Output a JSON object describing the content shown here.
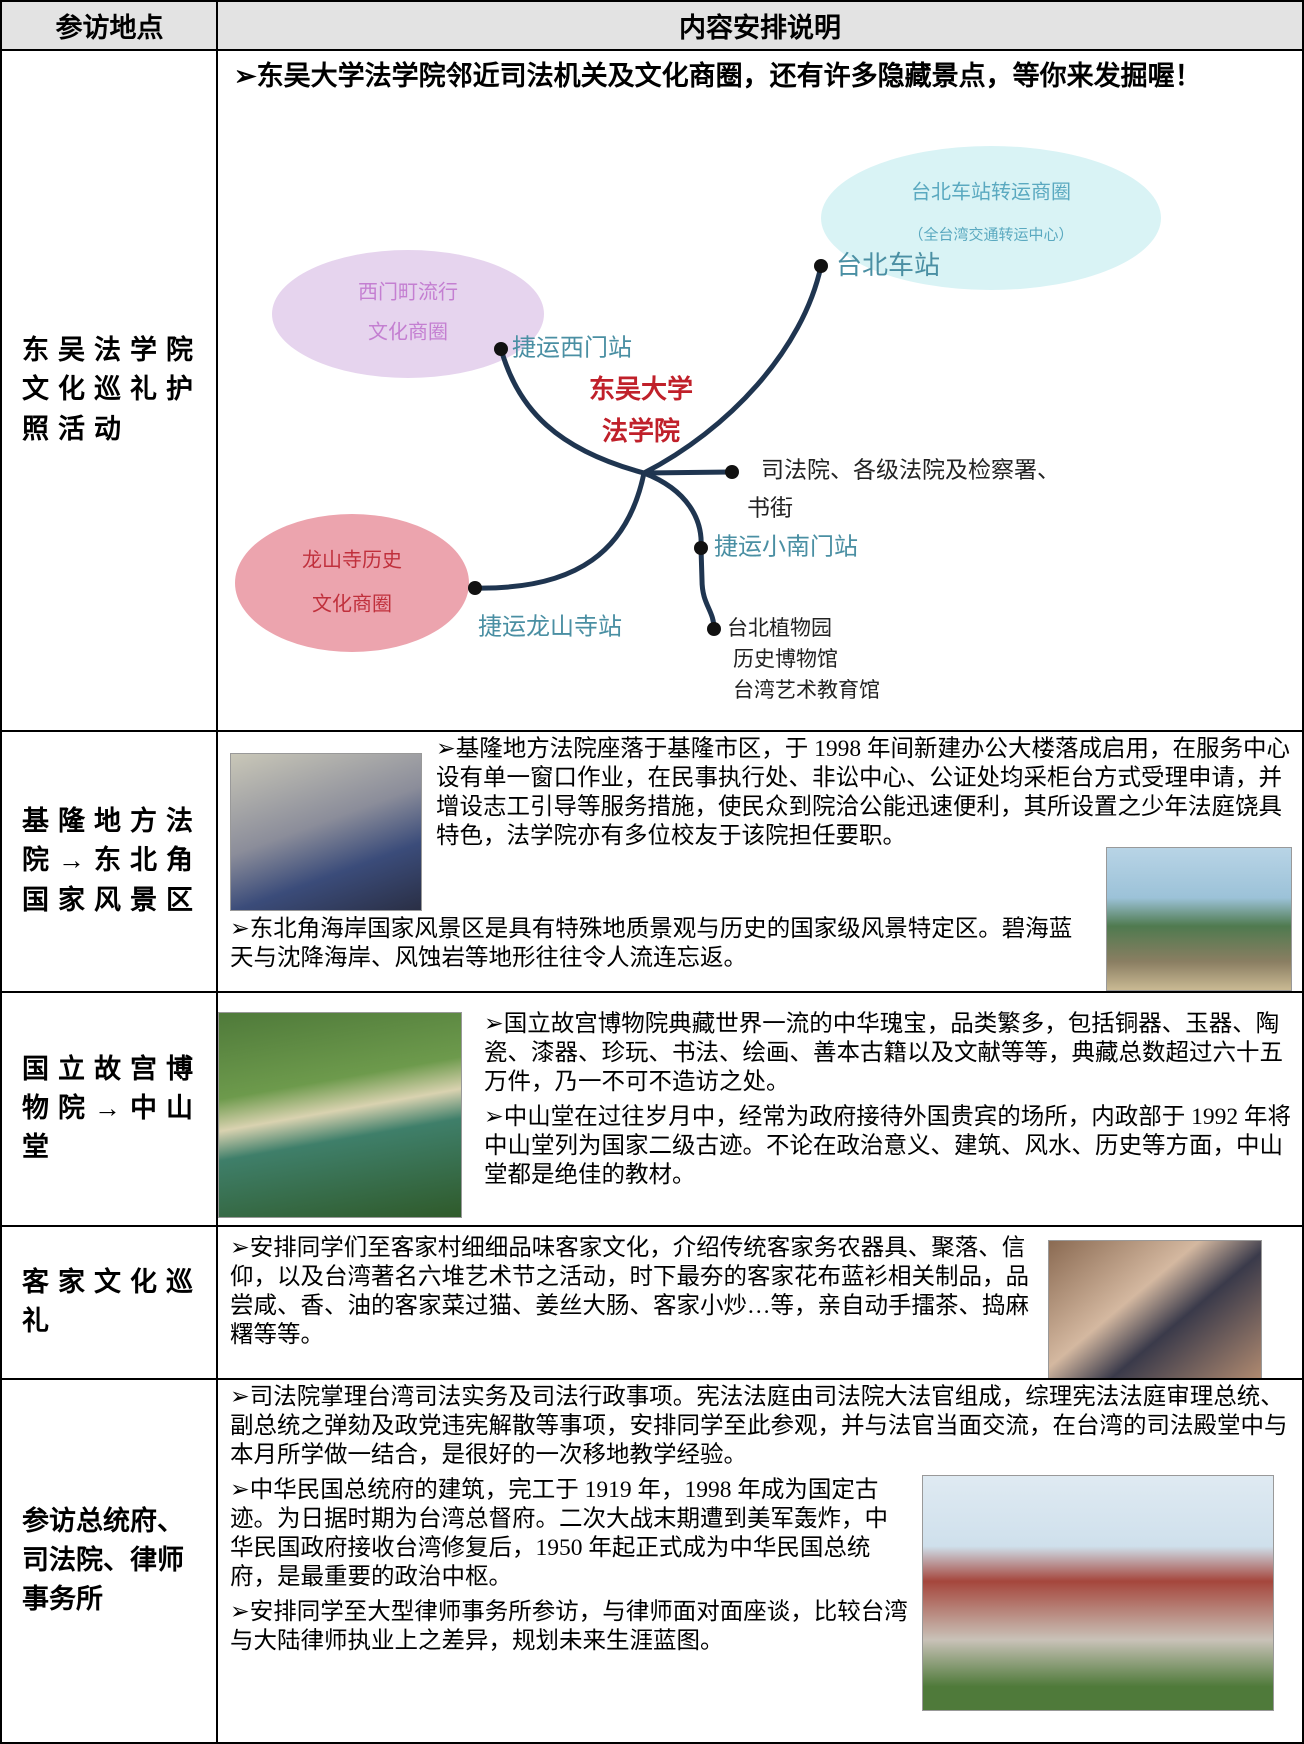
{
  "table": {
    "headers": [
      "参访地点",
      "内容安排说明"
    ],
    "rows": [
      {
        "place": "东吴法学院文化巡礼护照活动",
        "paragraphs": [
          "➢东吴大学法学院邻近司法机关及文化商圈，还有许多隐藏景点，等你来发掘喔！"
        ],
        "map": {
          "areas": [
            {
              "lines": [
                "台北车站转运商圈",
                "（全台湾交通转运中心）"
              ]
            },
            {
              "lines": [
                "西门町流行",
                "文化商圈"
              ]
            },
            {
              "lines": [
                "龙山寺历史",
                "文化商圈"
              ]
            }
          ],
          "center": [
            "东吴大学",
            "法学院"
          ],
          "stops": [
            {
              "lines": [
                "台北车站"
              ]
            },
            {
              "lines": [
                "捷运西门站"
              ]
            },
            {
              "lines": [
                "司法院、各级法院及检察署、",
                "书街"
              ]
            },
            {
              "lines": [
                "捷运小南门站"
              ]
            },
            {
              "lines": [
                "捷运龙山寺站"
              ]
            },
            {
              "lines": [
                "台北植物园",
                "历史博物馆",
                "台湾艺术教育馆"
              ]
            }
          ]
        }
      },
      {
        "place": "基隆地方法院→东北角国家风景区",
        "paragraphs": [
          "➢基隆地方法院座落于基隆市区，于 1998 年间新建办公大楼落成启用，在服务中心设有单一窗口作业，在民事执行处、非讼中心、公证处均采柜台方式受理申请，并增设志工引导等服务措施，使民众到院洽公能迅速便利，其所设置之少年法庭饶具特色，法学院亦有多位校友于该院担任要职。",
          "➢东北角海岸国家风景区是具有特殊地质景观与历史的国家级风景特定区。碧海蓝天与沈降海岸、风蚀岩等地形往往令人流连忘返。"
        ]
      },
      {
        "place": "国立故宫博物院→中山堂",
        "paragraphs": [
          "➢国立故宫博物院典藏世界一流的中华瑰宝，品类繁多，包括铜器、玉器、陶瓷、漆器、珍玩、书法、绘画、善本古籍以及文献等等，典藏总数超过六十五万件，乃一不可不造访之处。",
          "➢中山堂在过往岁月中，经常为政府接待外国贵宾的场所，内政部于 1992 年将中山堂列为国家二级古迹。不论在政治意义、建筑、风水、历史等方面，中山堂都是绝佳的教材。"
        ]
      },
      {
        "place": "客家文化巡礼",
        "paragraphs": [
          "➢安排同学们至客家村细细品味客家文化，介绍传统客家务农器具、聚落、信仰，以及台湾著名六堆艺术节之活动，时下最夯的客家花布蓝衫相关制品，品尝咸、香、油的客家菜过猫、姜丝大肠、客家小炒…等，亲自动手擂茶、捣麻糬等等。"
        ]
      },
      {
        "place": "参访总统府、司法院、律师事务所",
        "paragraphs": [
          "➢司法院掌理台湾司法实务及司法行政事项。宪法法庭由司法院大法官组成，综理宪法法庭审理总统、副总统之弹劾及政党违宪解散等事项，安排同学至此参观，并与法官当面交流，在台湾的司法殿堂中与本月所学做一结合，是很好的一次移地教学经验。",
          "➢中华民国总统府的建筑，完工于 1919 年，1998 年成为国定古迹。为日据时期为台湾总督府。二次大战末期遭到美军轰炸，中华民国政府接收台湾修复后，1950 年起正式成为中华民国总统府，是最重要的政治中枢。",
          "➢安排同学至大型律师事务所参访，与律师面对面座谈，比较台湾与大陆律师执业上之差异，规划未来生涯蓝图。"
        ]
      }
    ]
  }
}
